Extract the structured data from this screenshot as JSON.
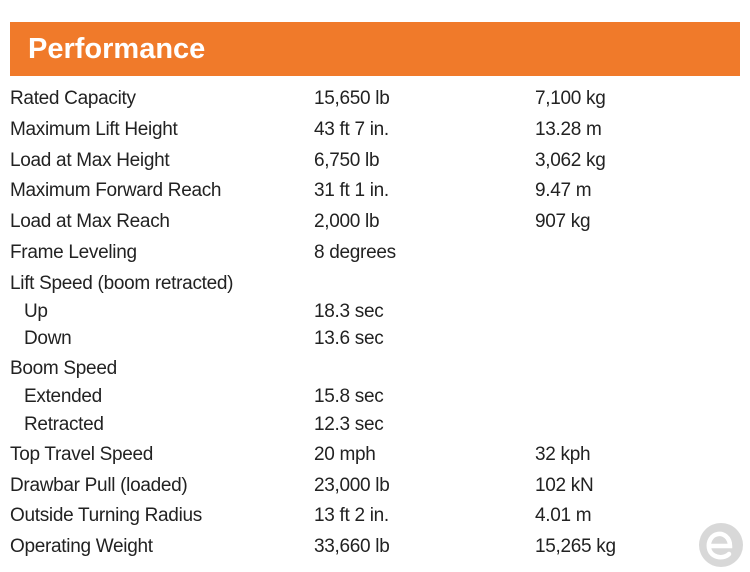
{
  "header": {
    "title": "Performance"
  },
  "table": {
    "rows": [
      {
        "label": "Rated Capacity",
        "values": [
          "15,650 lb",
          "7,100 kg"
        ]
      },
      {
        "label": "Maximum Lift Height",
        "values": [
          "43 ft 7 in.",
          "13.28 m"
        ]
      },
      {
        "label": "Load at Max Height",
        "values": [
          "6,750 lb",
          "3,062 kg"
        ]
      },
      {
        "label": "Maximum Forward Reach",
        "values": [
          "31 ft 1 in.",
          "9.47 m"
        ]
      },
      {
        "label": "Load at Max Reach",
        "values": [
          "2,000 lb",
          "907 kg"
        ]
      },
      {
        "label": "Frame Leveling",
        "values": [
          "8 degrees"
        ]
      },
      {
        "label": "Lift Speed (boom retracted)",
        "items": [
          {
            "label": "Up",
            "values": [
              "18.3 sec"
            ]
          },
          {
            "label": "Down",
            "values": [
              "13.6 sec"
            ]
          }
        ]
      },
      {
        "label": "Boom Speed",
        "items": [
          {
            "label": "Extended",
            "values": [
              "15.8 sec"
            ]
          },
          {
            "label": "Retracted",
            "values": [
              "12.3 sec"
            ]
          }
        ]
      },
      {
        "label": "Top Travel Speed",
        "values": [
          "20 mph",
          "32 kph"
        ]
      },
      {
        "label": "Drawbar Pull (loaded)",
        "values": [
          "23,000 lb",
          "102 kN"
        ]
      },
      {
        "label": "Outside Turning Radius",
        "values": [
          "13 ft 2 in.",
          "4.01 m"
        ]
      },
      {
        "label": "Operating Weight",
        "values": [
          "33,660 lb",
          "15,265 kg"
        ]
      }
    ]
  }
}
